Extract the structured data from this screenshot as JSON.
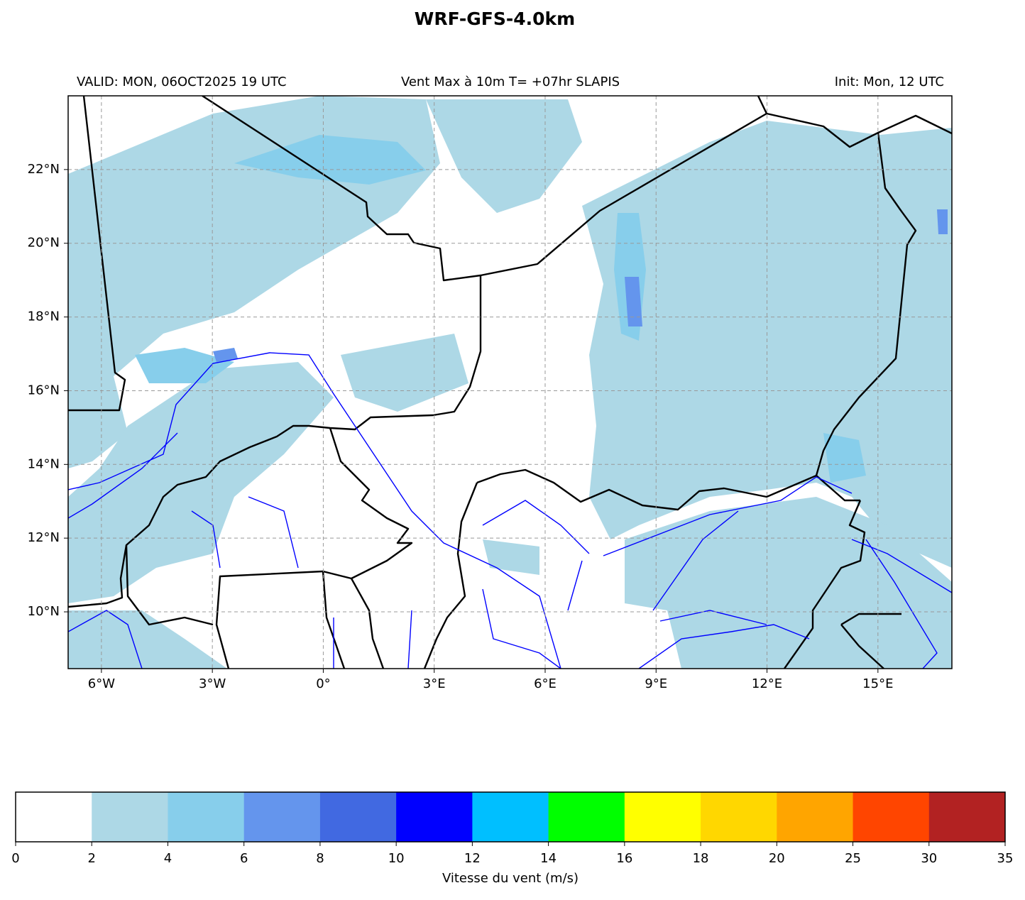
{
  "header": {
    "title": "WRF-GFS-4.0km",
    "valid": "VALID: MON, 06OCT2025 19 UTC",
    "subtitle": "Vent Max à 10m T= +07hr SLAPIS",
    "init": "Init: Mon, 12 UTC"
  },
  "map": {
    "lonlim": [
      -6.9,
      17
    ],
    "latlim": [
      8.46,
      24
    ],
    "xticks": [
      {
        "value": -6,
        "label": "6°W"
      },
      {
        "value": -3,
        "label": "3°W"
      },
      {
        "value": 0,
        "label": "0°"
      },
      {
        "value": 3,
        "label": "3°E"
      },
      {
        "value": 6,
        "label": "6°E"
      },
      {
        "value": 9,
        "label": "9°E"
      },
      {
        "value": 12,
        "label": "12°E"
      },
      {
        "value": 15,
        "label": "15°E"
      }
    ],
    "yticks": [
      {
        "value": 10,
        "label": "10°N"
      },
      {
        "value": 12,
        "label": "12°N"
      },
      {
        "value": 14,
        "label": "14°N"
      },
      {
        "value": 16,
        "label": "16°N"
      },
      {
        "value": 18,
        "label": "18°N"
      },
      {
        "value": 20,
        "label": "20°N"
      },
      {
        "value": 22,
        "label": "22°N"
      }
    ],
    "grid": true
  },
  "colorbar": {
    "label": "Vitesse du vent (m/s)",
    "bounds": [
      0,
      2,
      4,
      6,
      8,
      10,
      12,
      14,
      16,
      18,
      20,
      25,
      30,
      35
    ],
    "colors": [
      "#ffffff",
      "#add8e6",
      "#87ceeb",
      "#6495ed",
      "#4169e1",
      "#0000ff",
      "#00bfff",
      "#00ff00",
      "#ffff00",
      "#ffd700",
      "#ffa500",
      "#ff4500",
      "#b22222"
    ]
  }
}
